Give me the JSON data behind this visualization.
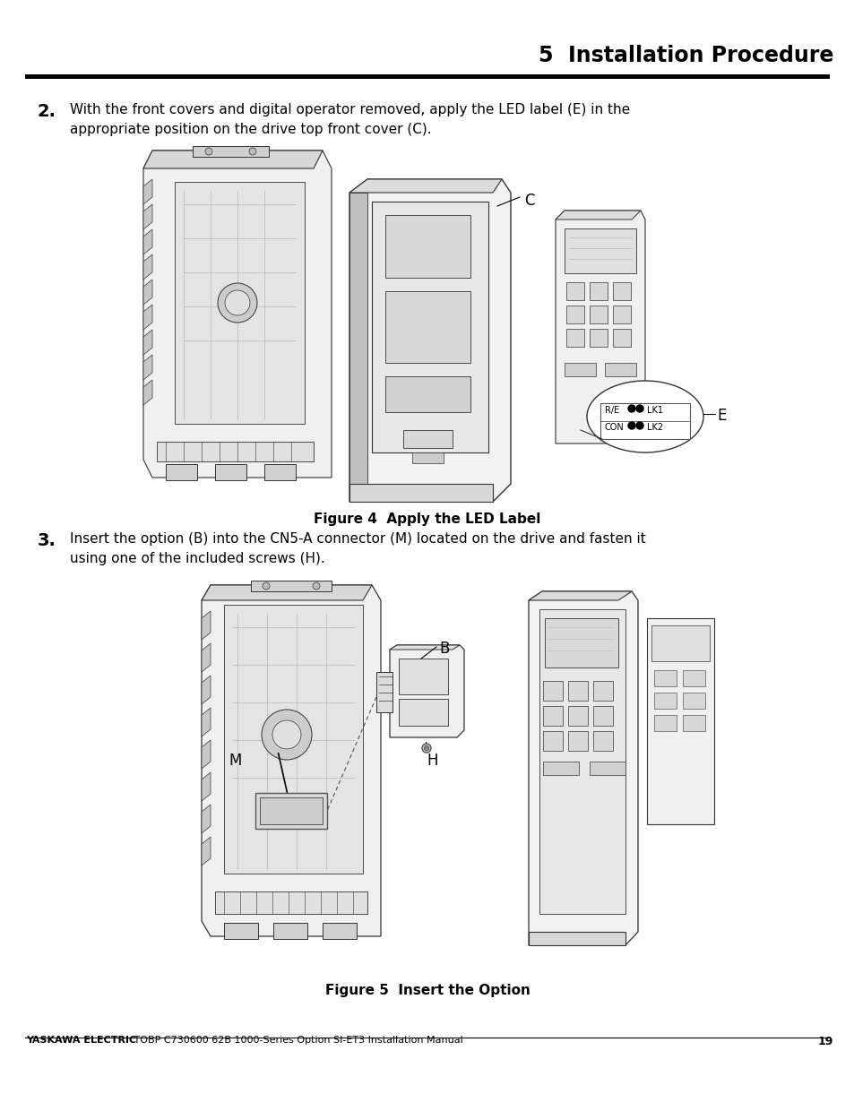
{
  "title": "5  Installation Procedure",
  "title_fontsize": 17,
  "background_color": "#ffffff",
  "text_color": "#000000",
  "step2_number": "2.",
  "step2_text_line1": "With the front covers and digital operator removed, apply the LED label (E) in the",
  "step2_text_line2": "appropriate position on the drive top front cover (C).",
  "step3_number": "3.",
  "step3_text_line1": "Insert the option (B) into the CN5-A connector (M) located on the drive and fasten it",
  "step3_text_line2": "using one of the included screws (H).",
  "fig4_caption": "Figure 4  Apply the LED Label",
  "fig5_caption": "Figure 5  Insert the Option",
  "footer_bold": "YASKAWA ELECTRIC",
  "footer_normal": " TOBP C730600 62B 1000-Series Option SI-ET3 Installation Manual",
  "footer_page": "19",
  "line_color": "#333333",
  "light_gray": "#e8e8e8",
  "mid_gray": "#cccccc",
  "dark_gray": "#999999"
}
